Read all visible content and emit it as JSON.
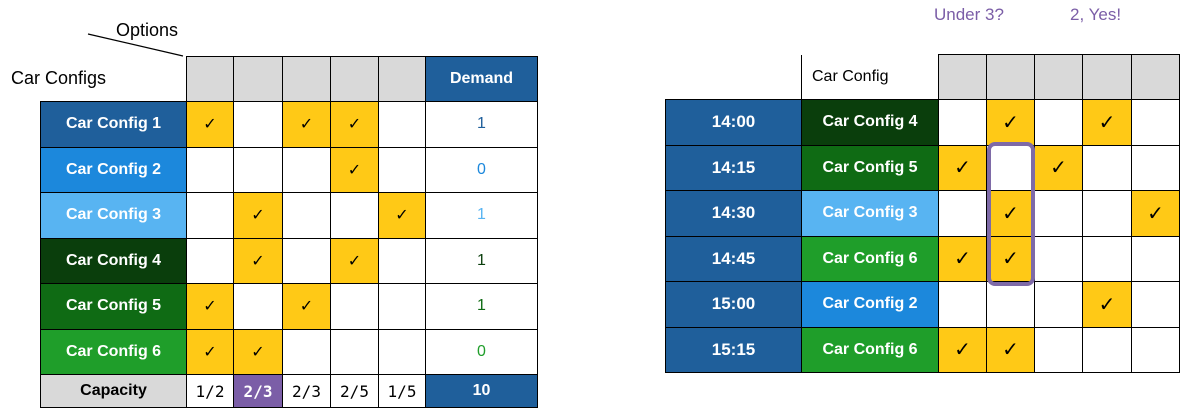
{
  "left": {
    "options_label": "Options",
    "row_axis_label": "Car Configs",
    "demand_header": "Demand",
    "rows": [
      {
        "name": "Car Config 1",
        "bg": "#1f5f9b",
        "checks": [
          "✓",
          "",
          "✓",
          "✓",
          ""
        ],
        "demand": "1",
        "demand_color": "#1f5f9b"
      },
      {
        "name": "Car Config 2",
        "bg": "#1c88dc",
        "checks": [
          "",
          "",
          "",
          "✓",
          ""
        ],
        "demand": "0",
        "demand_color": "#1c88dc"
      },
      {
        "name": "Car Config 3",
        "bg": "#58b4f2",
        "checks": [
          "",
          "✓",
          "",
          "",
          "✓"
        ],
        "demand": "1",
        "demand_color": "#58b4f2"
      },
      {
        "name": "Car Config 4",
        "bg": "#0a3e0c",
        "checks": [
          "",
          "✓",
          "",
          "✓",
          ""
        ],
        "demand": "1",
        "demand_color": "#0a3e0c"
      },
      {
        "name": "Car Config 5",
        "bg": "#0f6b14",
        "checks": [
          "✓",
          "",
          "✓",
          "",
          ""
        ],
        "demand": "1",
        "demand_color": "#0f6b14"
      },
      {
        "name": "Car Config 6",
        "bg": "#1f9e2a",
        "checks": [
          "✓",
          "✓",
          "",
          "",
          ""
        ],
        "demand": "0",
        "demand_color": "#1f9e2a"
      }
    ],
    "capacity_label": "Capacity",
    "capacity_values": [
      "1/2",
      "2/3",
      "2/3",
      "2/5",
      "1/5"
    ],
    "capacity_highlight_index": 1,
    "capacity_total": "10"
  },
  "right": {
    "annotations": [
      "Under 3?",
      "2, Yes!"
    ],
    "header_label": "Car Config",
    "rows": [
      {
        "time": "14:00",
        "name": "Car Config 4",
        "bg": "#0a3e0c",
        "checks": [
          "",
          "✓",
          "",
          "✓",
          ""
        ]
      },
      {
        "time": "14:15",
        "name": "Car Config 5",
        "bg": "#0f6b14",
        "checks": [
          "✓",
          "",
          "✓",
          "",
          ""
        ]
      },
      {
        "time": "14:30",
        "name": "Car Config 3",
        "bg": "#58b4f2",
        "checks": [
          "",
          "✓",
          "",
          "",
          "✓"
        ]
      },
      {
        "time": "14:45",
        "name": "Car Config 6",
        "bg": "#1f9e2a",
        "checks": [
          "✓",
          "✓",
          "",
          "",
          ""
        ]
      },
      {
        "time": "15:00",
        "name": "Car Config 2",
        "bg": "#1c88dc",
        "checks": [
          "",
          "",
          "",
          "✓",
          ""
        ]
      },
      {
        "time": "15:15",
        "name": "Car Config 6",
        "bg": "#1f9e2a",
        "checks": [
          "✓",
          "✓",
          "",
          "",
          ""
        ]
      }
    ]
  },
  "colors": {
    "check_fill": "#ffc916",
    "header_gray": "#d9d9d9",
    "dark_blue": "#1f5f9b",
    "purple": "#7b5ea7",
    "capacity_gray": "#d9d9d9"
  }
}
